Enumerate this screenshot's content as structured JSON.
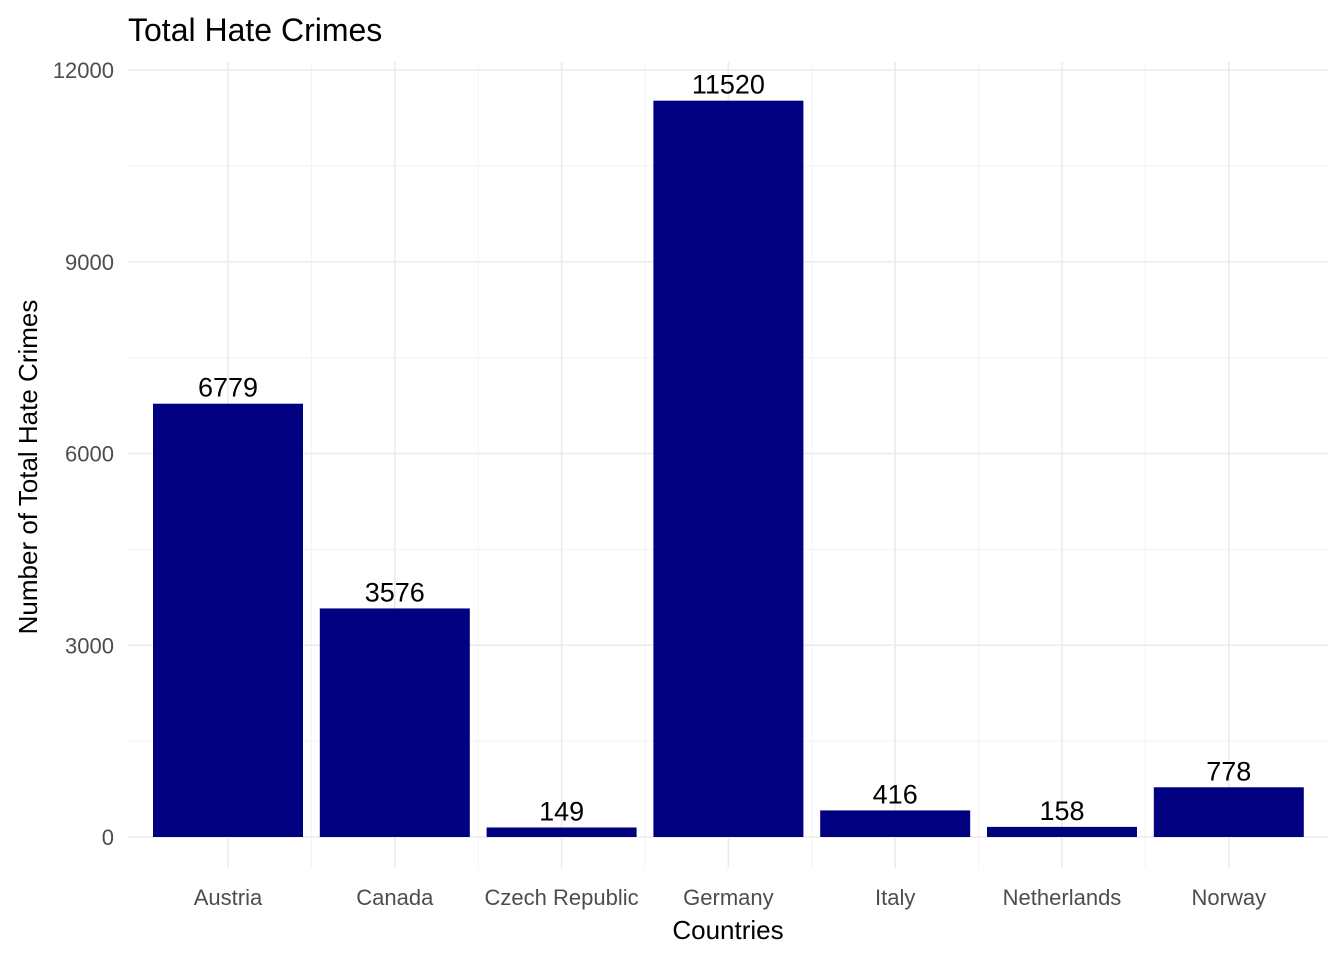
{
  "chart_data": {
    "type": "bar",
    "title": "Total Hate Crimes",
    "xlabel": "Countries",
    "ylabel": "Number of Total Hate Crimes",
    "categories": [
      "Austria",
      "Canada",
      "Czech Republic",
      "Germany",
      "Italy",
      "Netherlands",
      "Norway"
    ],
    "values": [
      6779,
      3576,
      149,
      11520,
      416,
      158,
      778
    ],
    "value_labels": [
      "6779",
      "3576",
      "149",
      "11520",
      "416",
      "158",
      "778"
    ],
    "ylim": [
      0,
      12000
    ],
    "yticks": [
      0,
      3000,
      6000,
      9000,
      12000
    ],
    "ytick_labels": [
      "0",
      "3000",
      "6000",
      "9000",
      "12000"
    ],
    "grid": true,
    "legend": "none",
    "bar_color": "#000080",
    "background": "#ffffff"
  }
}
